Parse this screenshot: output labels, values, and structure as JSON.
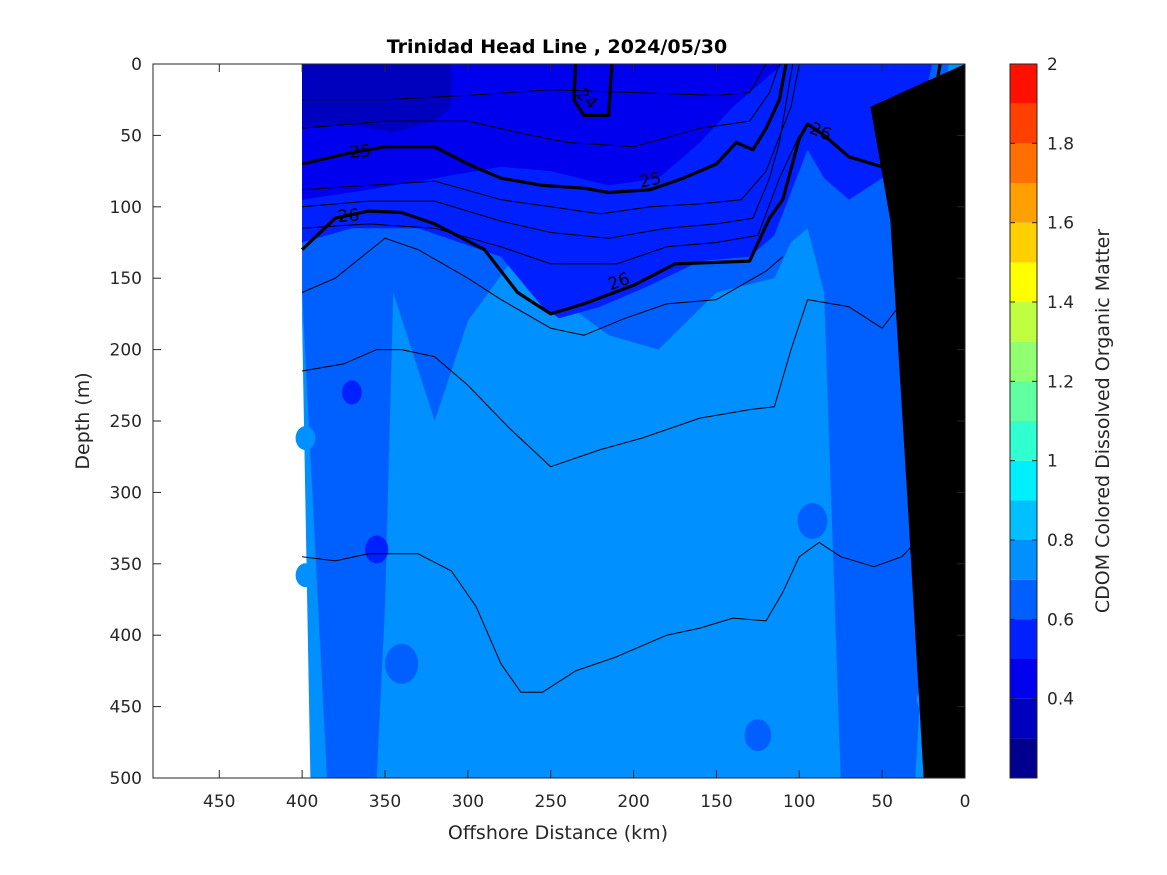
{
  "chart_data": {
    "type": "heatmap",
    "title": "Trinidad Head Line , 2024/05/30",
    "xlabel": "Offshore Distance (km)",
    "ylabel": "Depth (m)",
    "colorbar_label": "CDOM Colored Dissolved Organic Matter",
    "xlim": [
      490,
      0
    ],
    "ylim": [
      500,
      0
    ],
    "x_ticks": [
      450,
      400,
      350,
      300,
      250,
      200,
      150,
      100,
      50,
      0
    ],
    "y_ticks": [
      0,
      50,
      100,
      150,
      200,
      250,
      300,
      350,
      400,
      450,
      500
    ],
    "colorbar": {
      "range": [
        0.2,
        2.0
      ],
      "ticks": [
        0.4,
        0.6,
        0.8,
        1,
        1.2,
        1.4,
        1.6,
        1.8,
        2
      ],
      "levels": [
        {
          "from": 0.2,
          "to": 0.3,
          "color": "#00008f"
        },
        {
          "from": 0.3,
          "to": 0.4,
          "color": "#0000bf"
        },
        {
          "from": 0.4,
          "to": 0.5,
          "color": "#0000ef"
        },
        {
          "from": 0.5,
          "to": 0.6,
          "color": "#0020ff"
        },
        {
          "from": 0.6,
          "to": 0.7,
          "color": "#0060ff"
        },
        {
          "from": 0.7,
          "to": 0.8,
          "color": "#0090ff"
        },
        {
          "from": 0.8,
          "to": 0.9,
          "color": "#00c0ff"
        },
        {
          "from": 0.9,
          "to": 1.0,
          "color": "#00efff"
        },
        {
          "from": 1.0,
          "to": 1.1,
          "color": "#30ffcf"
        },
        {
          "from": 1.1,
          "to": 1.2,
          "color": "#60ff9f"
        },
        {
          "from": 1.2,
          "to": 1.3,
          "color": "#90ff70"
        },
        {
          "from": 1.3,
          "to": 1.4,
          "color": "#c0ff40"
        },
        {
          "from": 1.4,
          "to": 1.5,
          "color": "#ffff00"
        },
        {
          "from": 1.5,
          "to": 1.6,
          "color": "#ffcf00"
        },
        {
          "from": 1.6,
          "to": 1.7,
          "color": "#ff9f00"
        },
        {
          "from": 1.7,
          "to": 1.8,
          "color": "#ff7000"
        },
        {
          "from": 1.8,
          "to": 1.9,
          "color": "#ff4000"
        },
        {
          "from": 1.9,
          "to": 2.0,
          "color": "#ff1000"
        },
        {
          "from": 2.0,
          "to": 2.1,
          "color": "#df0000"
        },
        {
          "from": 2.1,
          "to": 2.2,
          "color": "#af0000"
        }
      ]
    },
    "data_extent_km": [
      0,
      400
    ],
    "field_layers": [
      {
        "value": 0.75,
        "points": [
          [
            400,
            180
          ],
          [
            395,
            500
          ],
          [
            0,
            500
          ],
          [
            0,
            0
          ],
          [
            400,
            0
          ]
        ]
      },
      {
        "value": 0.65,
        "points": [
          [
            400,
            160
          ],
          [
            385,
            500
          ],
          [
            355,
            500
          ],
          [
            350,
            380
          ],
          [
            345,
            160
          ],
          [
            320,
            250
          ],
          [
            300,
            180
          ],
          [
            275,
            140
          ],
          [
            250,
            160
          ],
          [
            215,
            190
          ],
          [
            185,
            200
          ],
          [
            150,
            160
          ],
          [
            115,
            150
          ],
          [
            105,
            125
          ],
          [
            95,
            115
          ],
          [
            85,
            160
          ],
          [
            75,
            500
          ],
          [
            30,
            500
          ],
          [
            20,
            300
          ],
          [
            10,
            0
          ],
          [
            400,
            0
          ]
        ]
      },
      {
        "value": 0.55,
        "points": [
          [
            400,
            125
          ],
          [
            370,
            115
          ],
          [
            330,
            115
          ],
          [
            305,
            125
          ],
          [
            280,
            135
          ],
          [
            255,
            170
          ],
          [
            245,
            178
          ],
          [
            220,
            170
          ],
          [
            190,
            155
          ],
          [
            160,
            138
          ],
          [
            130,
            135
          ],
          [
            115,
            120
          ],
          [
            105,
            90
          ],
          [
            95,
            60
          ],
          [
            85,
            80
          ],
          [
            70,
            95
          ],
          [
            50,
            80
          ],
          [
            30,
            60
          ],
          [
            20,
            0
          ],
          [
            400,
            0
          ]
        ]
      },
      {
        "value": 0.45,
        "points": [
          [
            400,
            95
          ],
          [
            360,
            88
          ],
          [
            320,
            80
          ],
          [
            280,
            72
          ],
          [
            250,
            75
          ],
          [
            215,
            85
          ],
          [
            185,
            80
          ],
          [
            160,
            55
          ],
          [
            140,
            30
          ],
          [
            120,
            10
          ],
          [
            110,
            0
          ],
          [
            400,
            0
          ]
        ]
      },
      {
        "value": 0.35,
        "points": [
          [
            400,
            45
          ],
          [
            375,
            42
          ],
          [
            345,
            48
          ],
          [
            320,
            40
          ],
          [
            310,
            30
          ],
          [
            310,
            0
          ],
          [
            400,
            0
          ]
        ]
      }
    ],
    "patches": [
      {
        "value": 0.75,
        "x": 18,
        "y": 255,
        "r": 8
      },
      {
        "value": 0.75,
        "x": 22,
        "y": 445,
        "r": 7
      },
      {
        "value": 0.75,
        "x": 398,
        "y": 262,
        "r": 6
      },
      {
        "value": 0.75,
        "x": 398,
        "y": 358,
        "r": 6
      },
      {
        "value": 0.65,
        "x": 92,
        "y": 320,
        "r": 9
      },
      {
        "value": 0.65,
        "x": 360,
        "y": 300,
        "r": 10
      },
      {
        "value": 0.65,
        "x": 340,
        "y": 420,
        "r": 10
      },
      {
        "value": 0.65,
        "x": 125,
        "y": 470,
        "r": 8
      },
      {
        "value": 0.55,
        "x": 355,
        "y": 340,
        "r": 7
      },
      {
        "value": 0.55,
        "x": 370,
        "y": 230,
        "r": 6
      }
    ],
    "seafloor": [
      [
        0,
        0
      ],
      [
        0,
        500
      ],
      [
        25,
        500
      ],
      [
        35,
        300
      ],
      [
        45,
        110
      ],
      [
        57,
        30
      ],
      [
        0,
        0
      ]
    ],
    "isopycnals": [
      {
        "label": "24",
        "bold": true,
        "points": [
          [
            235,
            0
          ],
          [
            236,
            25
          ],
          [
            230,
            36
          ],
          [
            215,
            36
          ],
          [
            214,
            15
          ],
          [
            213,
            0
          ]
        ]
      },
      {
        "label": "25",
        "bold": true,
        "points": [
          [
            400,
            70
          ],
          [
            370,
            62
          ],
          [
            350,
            58
          ],
          [
            320,
            58
          ],
          [
            300,
            70
          ],
          [
            280,
            80
          ],
          [
            255,
            85
          ],
          [
            230,
            87
          ],
          [
            215,
            90
          ],
          [
            190,
            88
          ],
          [
            170,
            80
          ],
          [
            150,
            70
          ],
          [
            138,
            55
          ],
          [
            128,
            60
          ],
          [
            120,
            45
          ],
          [
            112,
            25
          ],
          [
            108,
            0
          ]
        ]
      },
      {
        "label": "26",
        "bold": true,
        "points": [
          [
            400,
            130
          ],
          [
            380,
            108
          ],
          [
            360,
            103
          ],
          [
            340,
            104
          ],
          [
            320,
            112
          ],
          [
            290,
            130
          ],
          [
            270,
            160
          ],
          [
            250,
            175
          ],
          [
            230,
            168
          ],
          [
            200,
            155
          ],
          [
            175,
            140
          ],
          [
            130,
            138
          ],
          [
            118,
            108
          ],
          [
            110,
            95
          ],
          [
            100,
            52
          ],
          [
            95,
            42
          ],
          [
            85,
            50
          ],
          [
            70,
            65
          ],
          [
            50,
            72
          ],
          [
            35,
            55
          ],
          [
            18,
            20
          ],
          [
            15,
            0
          ]
        ]
      },
      {
        "label": "",
        "bold": false,
        "points": [
          [
            400,
            25
          ],
          [
            350,
            25
          ],
          [
            300,
            22
          ],
          [
            250,
            18
          ],
          [
            200,
            20
          ],
          [
            150,
            22
          ],
          [
            130,
            20
          ],
          [
            120,
            0
          ]
        ]
      },
      {
        "label": "",
        "bold": false,
        "points": [
          [
            400,
            45
          ],
          [
            350,
            40
          ],
          [
            300,
            40
          ],
          [
            270,
            48
          ],
          [
            240,
            55
          ],
          [
            200,
            58
          ],
          [
            160,
            45
          ],
          [
            130,
            40
          ],
          [
            118,
            20
          ],
          [
            112,
            0
          ]
        ]
      },
      {
        "label": "",
        "bold": false,
        "points": [
          [
            400,
            88
          ],
          [
            360,
            85
          ],
          [
            320,
            82
          ],
          [
            280,
            95
          ],
          [
            250,
            100
          ],
          [
            220,
            105
          ],
          [
            190,
            100
          ],
          [
            160,
            98
          ],
          [
            135,
            95
          ],
          [
            120,
            75
          ],
          [
            105,
            30
          ],
          [
            100,
            0
          ]
        ]
      },
      {
        "label": "",
        "bold": false,
        "points": [
          [
            400,
            100
          ],
          [
            360,
            96
          ],
          [
            320,
            96
          ],
          [
            280,
            110
          ],
          [
            250,
            118
          ],
          [
            215,
            122
          ],
          [
            180,
            115
          ],
          [
            150,
            112
          ],
          [
            128,
            108
          ],
          [
            118,
            80
          ],
          [
            112,
            55
          ],
          [
            104,
            0
          ]
        ]
      },
      {
        "label": "",
        "bold": false,
        "points": [
          [
            400,
            115
          ],
          [
            360,
            112
          ],
          [
            320,
            115
          ],
          [
            280,
            128
          ],
          [
            250,
            140
          ],
          [
            210,
            140
          ],
          [
            180,
            128
          ],
          [
            150,
            125
          ],
          [
            125,
            120
          ],
          [
            112,
            80
          ],
          [
            100,
            50
          ]
        ]
      },
      {
        "label": "",
        "bold": false,
        "points": [
          [
            400,
            160
          ],
          [
            380,
            150
          ],
          [
            350,
            122
          ],
          [
            330,
            130
          ],
          [
            300,
            150
          ],
          [
            280,
            165
          ],
          [
            250,
            185
          ],
          [
            230,
            190
          ],
          [
            205,
            178
          ],
          [
            180,
            168
          ],
          [
            150,
            165
          ],
          [
            120,
            145
          ],
          [
            110,
            135
          ]
        ]
      },
      {
        "label": "",
        "bold": false,
        "points": [
          [
            400,
            215
          ],
          [
            375,
            210
          ],
          [
            355,
            200
          ],
          [
            340,
            200
          ],
          [
            320,
            205
          ],
          [
            300,
            225
          ],
          [
            275,
            255
          ],
          [
            250,
            282
          ],
          [
            220,
            270
          ],
          [
            195,
            262
          ],
          [
            160,
            248
          ],
          [
            130,
            242
          ],
          [
            115,
            240
          ],
          [
            105,
            200
          ],
          [
            95,
            165
          ],
          [
            70,
            170
          ],
          [
            50,
            185
          ],
          [
            40,
            170
          ],
          [
            30,
            150
          ]
        ]
      },
      {
        "label": "",
        "bold": false,
        "points": [
          [
            400,
            345
          ],
          [
            380,
            348
          ],
          [
            360,
            343
          ],
          [
            330,
            343
          ],
          [
            310,
            355
          ],
          [
            295,
            380
          ],
          [
            280,
            420
          ],
          [
            268,
            440
          ],
          [
            255,
            440
          ],
          [
            235,
            425
          ],
          [
            210,
            415
          ],
          [
            180,
            400
          ],
          [
            160,
            395
          ],
          [
            140,
            388
          ],
          [
            120,
            390
          ],
          [
            110,
            370
          ],
          [
            100,
            345
          ],
          [
            88,
            335
          ],
          [
            75,
            345
          ],
          [
            55,
            352
          ],
          [
            38,
            345
          ],
          [
            30,
            335
          ]
        ]
      }
    ],
    "contour_labels": [
      {
        "text": "24",
        "x": 228,
        "y": 24,
        "angle": 45
      },
      {
        "text": "25",
        "x": 365,
        "y": 61,
        "angle": -5
      },
      {
        "text": "25",
        "x": 190,
        "y": 81,
        "angle": -12
      },
      {
        "text": "26",
        "x": 372,
        "y": 106,
        "angle": -5
      },
      {
        "text": "26",
        "x": 209,
        "y": 152,
        "angle": -20
      },
      {
        "text": "26",
        "x": 87,
        "y": 47,
        "angle": 22
      }
    ]
  }
}
